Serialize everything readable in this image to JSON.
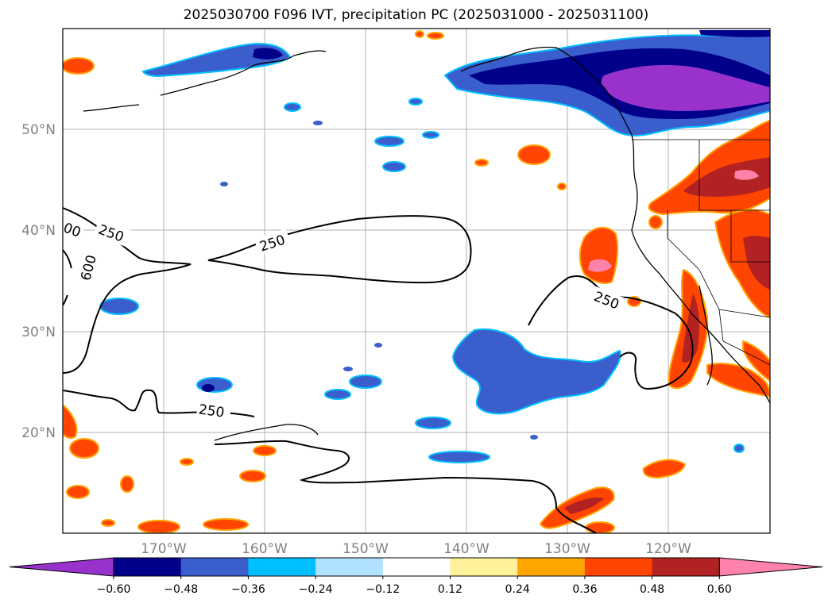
{
  "title": "2025030700 F096 IVT, precipitation PC (2025031000 - 2025031100)",
  "lat_labels": [
    "50°N",
    "40°N",
    "30°N",
    "20°N"
  ],
  "lon_labels": [
    "170°W",
    "160°W",
    "150°W",
    "140°W",
    "130°W",
    "120°W"
  ],
  "contour_labels": [
    "250",
    "250",
    "250",
    "250",
    "600",
    "00"
  ],
  "colorbar": {
    "ticks": [
      "−0.60",
      "−0.48",
      "−0.36",
      "−0.24",
      "−0.12",
      "0.12",
      "0.24",
      "0.36",
      "0.48",
      "0.60"
    ],
    "colors": [
      "#9932cc",
      "#00008b",
      "#3a5fcd",
      "#00bfff",
      "#b0e2ff",
      "#ffffff",
      "#fff09a",
      "#ffa500",
      "#ff4500",
      "#b22222",
      "#ff82ab"
    ]
  }
}
